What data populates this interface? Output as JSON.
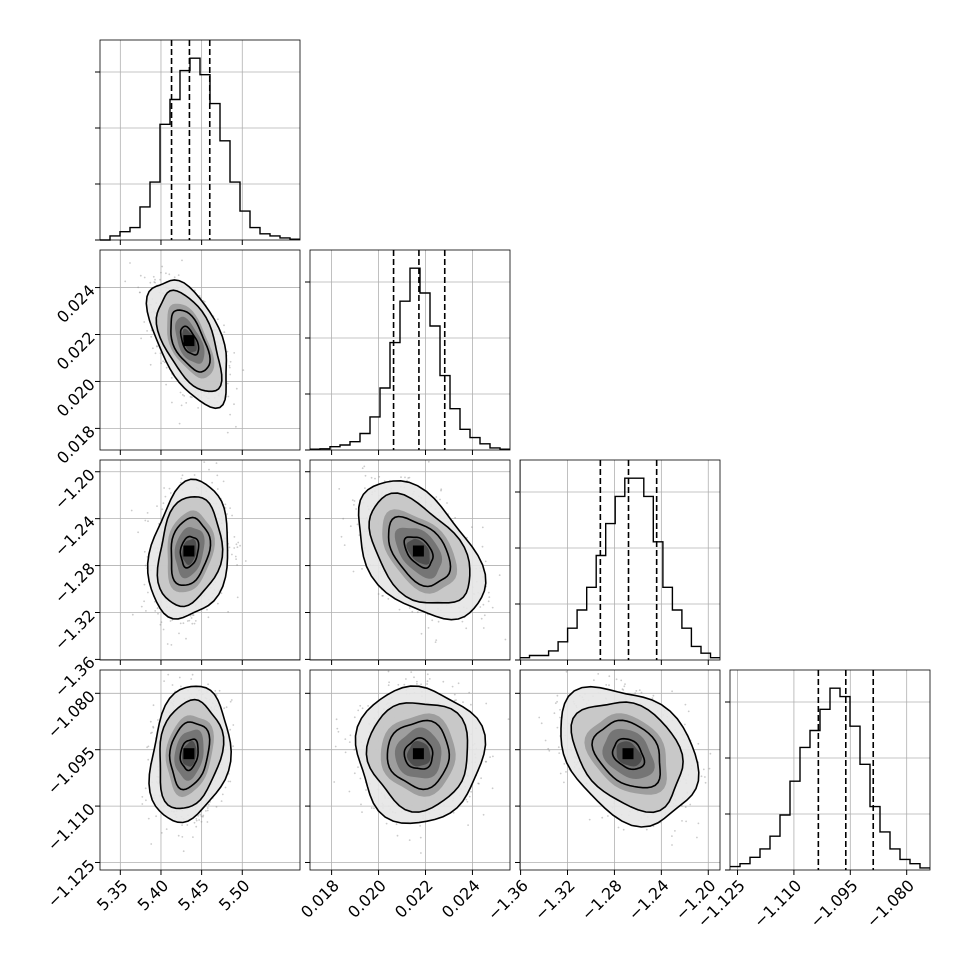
{
  "chart_data": {
    "type": "corner",
    "grid": true,
    "parameters": [
      {
        "ticks": [
          5.35,
          5.4,
          5.45,
          5.5
        ],
        "tick_labels": [
          "5.35",
          "5.40",
          "5.45",
          "5.50"
        ],
        "lim": [
          5.325,
          5.571
        ],
        "q16": 5.413,
        "q50": 5.435,
        "q84": 5.46
      },
      {
        "ticks": [
          0.018,
          0.02,
          0.022,
          0.024
        ],
        "tick_labels": [
          "0.018",
          "0.020",
          "0.022",
          "0.024"
        ],
        "lim": [
          0.01708,
          0.0256
        ],
        "q16": 0.02064,
        "q50": 0.02172,
        "q84": 0.02282
      },
      {
        "ticks": [
          -1.36,
          -1.32,
          -1.28,
          -1.24,
          -1.2
        ],
        "tick_labels": [
          "−1.36",
          "−1.32",
          "−1.28",
          "−1.24",
          "−1.20"
        ],
        "lim": [
          -1.3605,
          -1.19
        ],
        "q16": -1.292,
        "q50": -1.268,
        "q84": -1.244
      },
      {
        "ticks": [
          -1.125,
          -1.11,
          -1.095,
          -1.08
        ],
        "tick_labels": [
          "−1.125",
          "−1.110",
          "−1.095",
          "−1.080"
        ],
        "lim": [
          -1.127,
          -1.0738
        ],
        "q16": -1.1035,
        "q50": -1.0962,
        "q84": -1.0889
      }
    ],
    "histograms": [
      [
        0,
        1,
        2,
        3,
        8,
        14,
        28,
        34,
        41,
        44,
        40,
        33,
        24,
        14,
        7,
        3,
        1.5,
        1,
        0.5,
        0.2
      ],
      [
        0.2,
        0.3,
        0.8,
        1.2,
        2,
        4,
        8,
        15,
        26,
        36,
        44,
        38,
        30,
        18,
        10,
        5,
        3,
        1.5,
        0.5,
        0.2
      ],
      [
        0.5,
        1,
        1,
        2,
        4,
        7,
        11,
        16,
        23,
        30,
        36,
        40,
        40,
        36,
        26,
        16,
        11,
        7,
        3,
        1.5,
        0.5
      ],
      [
        0.8,
        1.5,
        3,
        5,
        8,
        13,
        21,
        29,
        33,
        38,
        43,
        41,
        34,
        25,
        15,
        9,
        5,
        2.5,
        1.5,
        0.5
      ]
    ],
    "correlations": [
      [
        1,
        -0.55,
        0.2,
        0.2
      ],
      [
        -0.55,
        1,
        -0.45,
        0.0
      ],
      [
        0.2,
        -0.45,
        1,
        -0.3
      ],
      [
        0.2,
        0.0,
        -0.3,
        1
      ]
    ],
    "stds": [
      0.02,
      0.0011,
      0.024,
      0.0074
    ]
  }
}
